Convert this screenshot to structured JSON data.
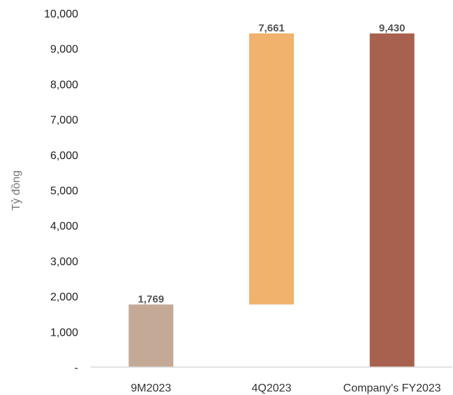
{
  "chart_data": {
    "type": "bar",
    "subtype": "waterfall",
    "title": "",
    "xlabel": "",
    "ylabel": "Tỷ đồng",
    "ylim": [
      0,
      10000
    ],
    "yticks": [
      0,
      1000,
      2000,
      3000,
      4000,
      5000,
      6000,
      7000,
      8000,
      9000,
      10000
    ],
    "ytick_labels": [
      "-",
      "1,000",
      "2,000",
      "3,000",
      "4,000",
      "5,000",
      "6,000",
      "7,000",
      "8,000",
      "9,000",
      "10,000"
    ],
    "categories": [
      "9M2023",
      "4Q2023",
      "Company's FY2023"
    ],
    "bars": [
      {
        "category": "9M2023",
        "base": 0,
        "value": 1769,
        "label": "1,769",
        "color": "#c4aa96"
      },
      {
        "category": "4Q2023",
        "base": 1769,
        "value": 7661,
        "label": "7,661",
        "color": "#f0b26c"
      },
      {
        "category": "Company's FY2023",
        "base": 0,
        "value": 9430,
        "label": "9,430",
        "color": "#a8614e"
      }
    ],
    "grid": false,
    "legend": "none"
  }
}
